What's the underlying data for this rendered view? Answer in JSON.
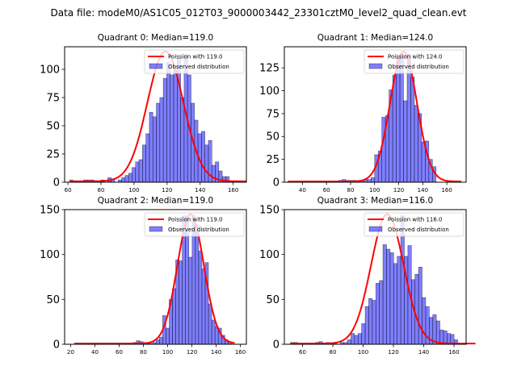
{
  "figure": {
    "suptitle": "Data file: modeM0/AS1C05_012T03_9000003442_23301cztM0_level2_quad_clean.evt"
  },
  "chart_data": [
    {
      "type": "bar",
      "title": "Quadrant 0: Median=119.0",
      "xlim": [
        58,
        168
      ],
      "ylim": [
        0,
        120
      ],
      "xticks": [
        60,
        80,
        100,
        120,
        140,
        160
      ],
      "yticks": [
        0,
        25,
        50,
        75,
        100
      ],
      "bin_start": 61,
      "bin_width": 2.1,
      "values": [
        2,
        0,
        0,
        0,
        2,
        2,
        2,
        0,
        0,
        2,
        0,
        4,
        3,
        0,
        2,
        4,
        6,
        8,
        13,
        18,
        20,
        33,
        43,
        62,
        58,
        70,
        75,
        92,
        106,
        95,
        100,
        110,
        75,
        113,
        95,
        70,
        55,
        43,
        45,
        33,
        37,
        15,
        18,
        10,
        5,
        5,
        0,
        0,
        0,
        0,
        0
      ],
      "poisson_mean": 119.0,
      "poisson_peak": 115,
      "legend": [
        "Poission with 119.0",
        "Observed distribution"
      ],
      "legend_position": "top-right"
    },
    {
      "type": "bar",
      "title": "Quadrant 1: Median=124.0",
      "xlim": [
        25,
        176
      ],
      "ylim": [
        0,
        148
      ],
      "xticks": [
        40,
        60,
        80,
        100,
        120,
        140,
        160
      ],
      "yticks": [
        0,
        25,
        50,
        75,
        100,
        125
      ],
      "bin_start": 28,
      "bin_width": 3.0,
      "values": [
        1,
        0,
        0,
        0,
        0,
        0,
        0,
        0,
        1,
        0,
        0,
        1,
        0,
        1,
        2,
        3,
        2,
        2,
        2,
        0,
        2,
        3,
        3,
        5,
        30,
        34,
        71,
        73,
        101,
        117,
        137,
        140,
        89,
        140,
        115,
        84,
        75,
        44,
        45,
        25,
        17,
        0,
        0,
        0,
        0,
        0,
        0,
        0
      ],
      "poisson_mean": 124.0,
      "poisson_peak": 142,
      "legend": [
        "Poission with 124.0",
        "Observed distribution"
      ],
      "legend_position": "top-right"
    },
    {
      "type": "bar",
      "title": "Quadrant 2: Median=119.0",
      "xlim": [
        15,
        165
      ],
      "ylim": [
        0,
        150
      ],
      "xticks": [
        20,
        40,
        60,
        80,
        100,
        120,
        140,
        160
      ],
      "yticks": [
        0,
        50,
        100,
        150
      ],
      "bin_start": 23,
      "bin_width": 2.7,
      "values": [
        1,
        0,
        0,
        0,
        0,
        0,
        0,
        0,
        0,
        0,
        0,
        0,
        0,
        0,
        0,
        0,
        0,
        0,
        2,
        4,
        3,
        2,
        1,
        1,
        2,
        5,
        8,
        32,
        18,
        50,
        62,
        94,
        93,
        143,
        143,
        97,
        143,
        133,
        104,
        84,
        91,
        45,
        27,
        20,
        18,
        10,
        5,
        3,
        0
      ],
      "poisson_mean": 119.0,
      "poisson_peak": 144,
      "legend": [
        "Poission with 119.0",
        "Observed distribution"
      ],
      "legend_position": "top-right"
    },
    {
      "type": "bar",
      "title": "Quadrant 3: Median=116.0",
      "xlim": [
        48,
        168
      ],
      "ylim": [
        0,
        150
      ],
      "xticks": [
        60,
        80,
        100,
        120,
        140,
        160
      ],
      "yticks": [
        0,
        50,
        100,
        150
      ],
      "bin_start": 52,
      "bin_width": 2.35,
      "values": [
        2,
        2,
        0,
        0,
        0,
        0,
        0,
        2,
        3,
        0,
        2,
        0,
        2,
        0,
        2,
        2,
        5,
        12,
        10,
        12,
        23,
        42,
        51,
        49,
        68,
        71,
        111,
        106,
        102,
        90,
        98,
        143,
        98,
        110,
        72,
        78,
        86,
        52,
        42,
        30,
        33,
        26,
        16,
        15,
        12,
        11,
        5,
        0,
        0,
        0,
        0,
        0
      ],
      "poisson_mean": 116.0,
      "poisson_peak": 144,
      "legend": [
        "Poission with 116.0",
        "Observed distribution"
      ],
      "legend_position": "top-right"
    }
  ]
}
